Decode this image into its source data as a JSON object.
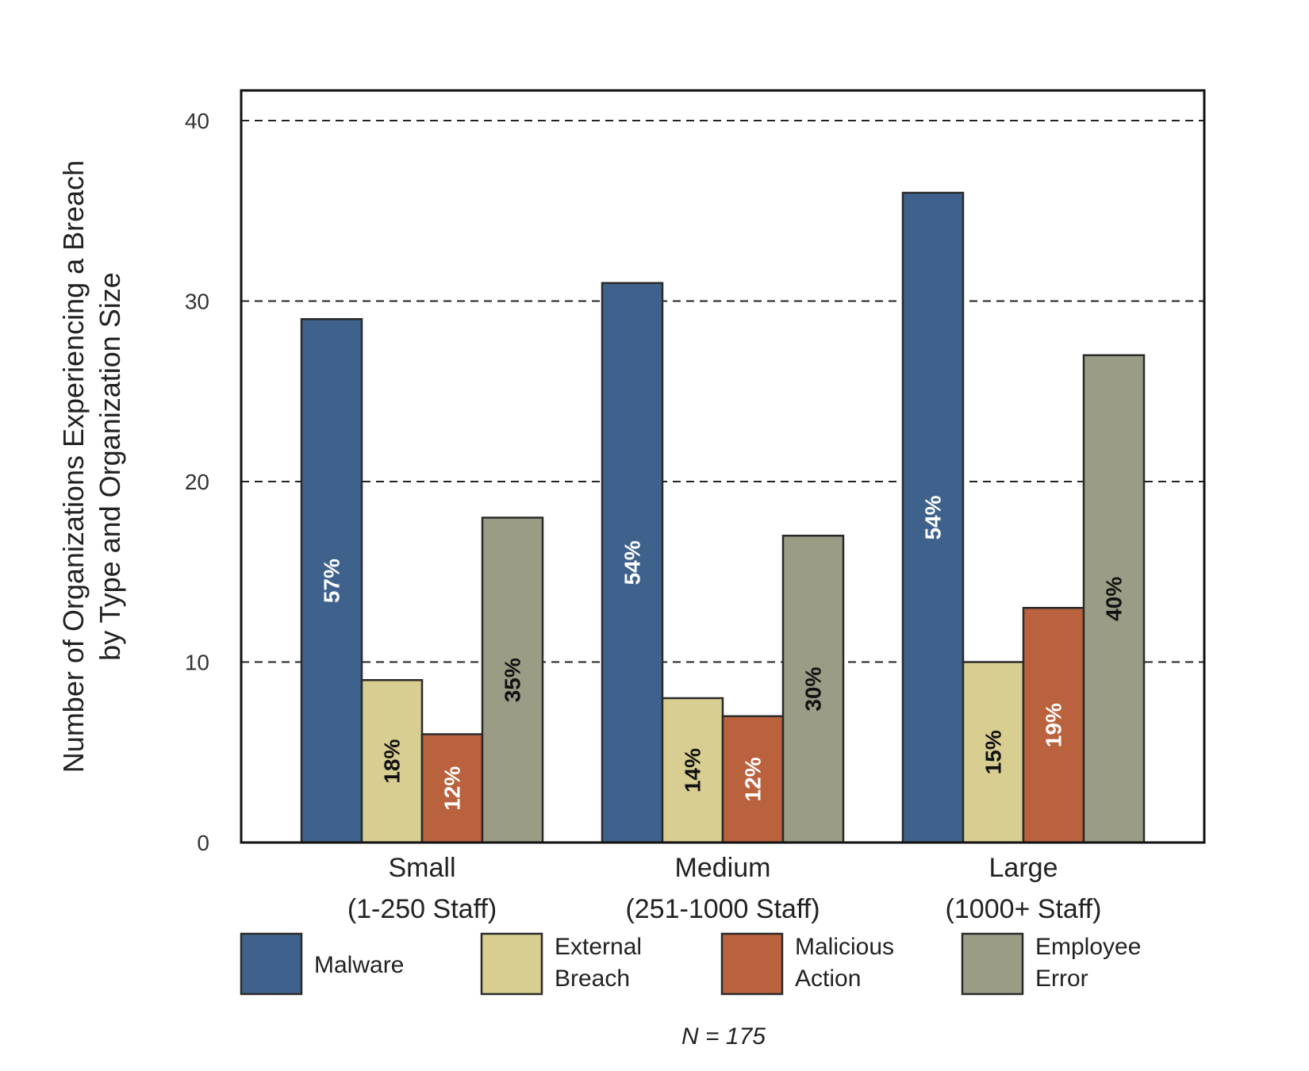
{
  "chart_data": {
    "type": "bar",
    "ylabel_lines": [
      "Number of Organizations Experiencing a Breach",
      "by Type and Organization Size"
    ],
    "categories": [
      {
        "name": "Small",
        "sub": "(1-250 Staff)"
      },
      {
        "name": "Medium",
        "sub": "(251-1000 Staff)"
      },
      {
        "name": "Large",
        "sub": "(1000+ Staff)"
      }
    ],
    "ylim": [
      0,
      40
    ],
    "yticks": [
      "0",
      "10",
      "20",
      "30",
      "40"
    ],
    "grid": true,
    "series": [
      {
        "name": "Malware",
        "legend_lines": [
          "Malware"
        ],
        "color": "#3f628c",
        "label_color": "#ffffff",
        "values": [
          29,
          31,
          36
        ],
        "labels": [
          "57%",
          "54%",
          "54%"
        ]
      },
      {
        "name": "External Breach",
        "legend_lines": [
          "External",
          "Breach"
        ],
        "color": "#d8ce92",
        "label_color": "#111111",
        "values": [
          9,
          8,
          10
        ],
        "labels": [
          "18%",
          "14%",
          "15%"
        ]
      },
      {
        "name": "Malicious Action",
        "legend_lines": [
          "Malicious",
          "Action"
        ],
        "color": "#b9623d",
        "label_color": "#ffffff",
        "values": [
          6,
          7,
          13
        ],
        "labels": [
          "12%",
          "12%",
          "19%"
        ]
      },
      {
        "name": "Employee Error",
        "legend_lines": [
          "Employee",
          "Error"
        ],
        "color": "#9a9c85",
        "label_color": "#111111",
        "values": [
          18,
          17,
          27
        ],
        "labels": [
          "35%",
          "30%",
          "40%"
        ]
      }
    ],
    "legend_position": "bottom",
    "note": "N = 175"
  }
}
